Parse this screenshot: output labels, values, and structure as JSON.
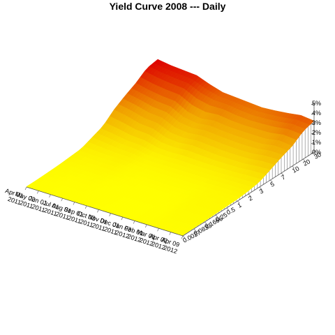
{
  "chart_data": {
    "type": "surface-3d",
    "title": "Yield Curve 2008 --- Daily",
    "xlabel": "",
    "ylabel": "",
    "zlabel": "",
    "z_ticks": [
      "0%",
      "1%",
      "2%",
      "3%",
      "4%",
      "5%"
    ],
    "z_range": [
      0,
      5
    ],
    "date_ticks": [
      [
        "Apr 01",
        "2011"
      ],
      [
        "May 02",
        "2011"
      ],
      [
        "Jun 01",
        "2011"
      ],
      [
        "Jul 01",
        "2011"
      ],
      [
        "Aug 01",
        "2011"
      ],
      [
        "Sep 01",
        "2011"
      ],
      [
        "Oct 03",
        "2011"
      ],
      [
        "Nov 01",
        "2011"
      ],
      [
        "Dec 01",
        "2011"
      ],
      [
        "Jan 03",
        "2012"
      ],
      [
        "Feb 01",
        "2012"
      ],
      [
        "Mar 01",
        "2012"
      ],
      [
        "Apr 02",
        "2012"
      ],
      [
        "Apr 09",
        "2012"
      ]
    ],
    "maturity_ticks": [
      "0.00273224043715847",
      "0.0833333333333333",
      "0.166666666666667",
      "0.25",
      "0.5",
      "1",
      "2",
      "3",
      "5",
      "7",
      "10",
      "20",
      "30"
    ],
    "maturities": [
      0.0027,
      0.0833,
      0.1667,
      0.25,
      0.5,
      1,
      2,
      3,
      5,
      7,
      10,
      20,
      30
    ],
    "curve_dates": [
      "2011-04",
      "2011-05",
      "2011-06",
      "2011-07",
      "2011-08",
      "2011-09",
      "2011-10",
      "2011-11",
      "2011-12",
      "2012-01",
      "2012-02",
      "2012-03",
      "2012-04"
    ],
    "yields": [
      [
        0.05,
        0.06,
        0.1,
        0.15,
        0.25,
        0.35,
        0.8,
        1.25,
        2.2,
        2.9,
        3.5,
        4.3,
        4.5
      ],
      [
        0.04,
        0.05,
        0.08,
        0.12,
        0.2,
        0.3,
        0.65,
        1.05,
        1.95,
        2.65,
        3.2,
        4.05,
        4.3
      ],
      [
        0.02,
        0.03,
        0.05,
        0.1,
        0.18,
        0.28,
        0.5,
        0.8,
        1.6,
        2.3,
        3.0,
        3.9,
        4.2
      ],
      [
        0.02,
        0.03,
        0.06,
        0.1,
        0.19,
        0.3,
        0.45,
        0.75,
        1.5,
        2.2,
        2.9,
        3.8,
        4.1
      ],
      [
        0.02,
        0.02,
        0.03,
        0.05,
        0.1,
        0.15,
        0.25,
        0.45,
        1.0,
        1.6,
        2.2,
        3.2,
        3.6
      ],
      [
        0.01,
        0.02,
        0.02,
        0.03,
        0.06,
        0.12,
        0.22,
        0.4,
        0.9,
        1.45,
        1.95,
        2.9,
        3.2
      ],
      [
        0.01,
        0.01,
        0.01,
        0.02,
        0.05,
        0.11,
        0.25,
        0.45,
        1.05,
        1.6,
        2.15,
        2.9,
        3.1
      ],
      [
        0.01,
        0.01,
        0.01,
        0.02,
        0.05,
        0.11,
        0.25,
        0.4,
        0.95,
        1.5,
        2.0,
        2.7,
        3.0
      ],
      [
        0.01,
        0.01,
        0.01,
        0.02,
        0.05,
        0.12,
        0.25,
        0.4,
        0.85,
        1.4,
        1.95,
        2.6,
        2.9
      ],
      [
        0.02,
        0.02,
        0.03,
        0.05,
        0.07,
        0.12,
        0.25,
        0.4,
        0.85,
        1.35,
        1.95,
        2.65,
        3.0
      ],
      [
        0.06,
        0.08,
        0.1,
        0.12,
        0.14,
        0.16,
        0.28,
        0.45,
        0.85,
        1.4,
        1.95,
        2.75,
        3.15
      ],
      [
        0.07,
        0.08,
        0.1,
        0.13,
        0.15,
        0.17,
        0.3,
        0.5,
        1.0,
        1.6,
        2.2,
        2.95,
        3.35
      ],
      [
        0.06,
        0.08,
        0.09,
        0.12,
        0.15,
        0.19,
        0.32,
        0.52,
        1.05,
        1.6,
        2.05,
        2.85,
        3.2
      ]
    ],
    "colors": {
      "low": "#ffff00",
      "mid": "#f0a000",
      "high": "#dd0000",
      "frame": "#555555",
      "side": "#ffffff"
    },
    "grid": false,
    "legend": "none"
  }
}
